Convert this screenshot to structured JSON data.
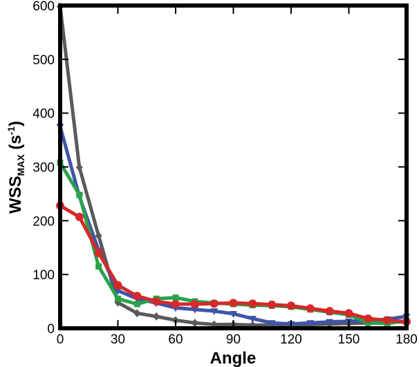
{
  "chart_data": {
    "type": "line",
    "xlabel": "Angle",
    "ylabel": {
      "main": "WSS",
      "subscript": "MAX",
      "unit_open": " (s",
      "unit_sup": "-1",
      "unit_close": ")"
    },
    "xlim": [
      0,
      180
    ],
    "ylim": [
      0,
      600
    ],
    "xticks": [
      0,
      30,
      60,
      90,
      120,
      150,
      180
    ],
    "yticks": [
      0,
      100,
      200,
      300,
      400,
      500,
      600
    ],
    "grid": false,
    "legend": "none",
    "series": [
      {
        "color": "#5a5a5a",
        "marker": "diamond",
        "x": [
          0,
          10,
          20,
          30,
          40,
          50,
          60,
          70,
          80,
          90,
          100,
          110,
          120,
          130,
          140,
          150,
          160,
          170,
          180
        ],
        "y": [
          598,
          299,
          172,
          48,
          28,
          22,
          15,
          10,
          7,
          7,
          6,
          6,
          6,
          7,
          8,
          9,
          10,
          11,
          12
        ]
      },
      {
        "color": "#4054a8",
        "marker": "triangle-down",
        "x": [
          0,
          10,
          20,
          30,
          40,
          50,
          60,
          70,
          80,
          90,
          100,
          110,
          120,
          130,
          140,
          150,
          160,
          170,
          180
        ],
        "y": [
          375,
          245,
          145,
          70,
          55,
          47,
          38,
          35,
          32,
          27,
          18,
          10,
          8,
          10,
          12,
          13,
          14,
          17,
          22
        ]
      },
      {
        "color": "#2aa14a",
        "marker": "square",
        "x": [
          0,
          10,
          20,
          30,
          40,
          50,
          60,
          70,
          80,
          90,
          100,
          110,
          120,
          130,
          140,
          150,
          160,
          170,
          180
        ],
        "y": [
          308,
          248,
          115,
          55,
          45,
          55,
          57,
          50,
          47,
          45,
          43,
          42,
          40,
          35,
          30,
          25,
          10,
          9,
          14
        ]
      },
      {
        "color": "#d42a2a",
        "marker": "circle",
        "x": [
          0,
          10,
          20,
          30,
          40,
          50,
          60,
          70,
          80,
          90,
          100,
          110,
          120,
          130,
          140,
          150,
          160,
          170,
          180
        ],
        "y": [
          228,
          207,
          140,
          80,
          60,
          50,
          45,
          45,
          46,
          47,
          46,
          44,
          42,
          37,
          32,
          28,
          18,
          15,
          12
        ]
      }
    ]
  }
}
